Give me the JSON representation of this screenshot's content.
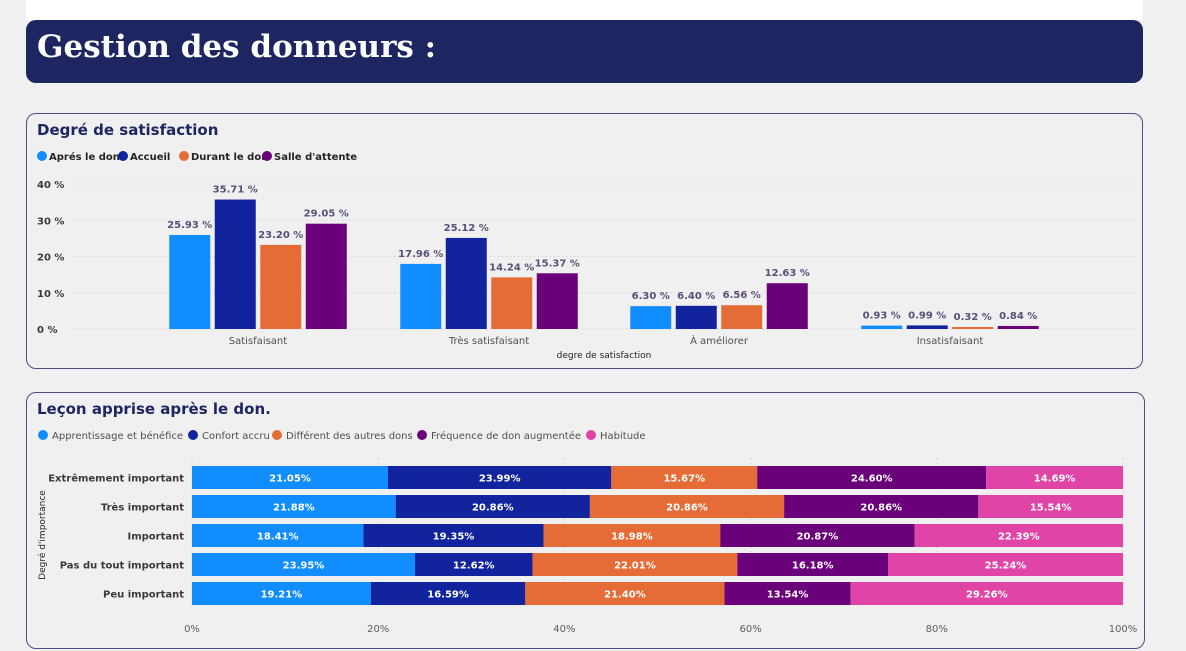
{
  "header": {
    "title": "Gestion des donneurs :"
  },
  "colors": {
    "apres": "#118dff",
    "accueil": "#12239e",
    "durant": "#e66c37",
    "salle": "#6b007b",
    "habitude": "#e044a7",
    "header_bg": "#1e2662",
    "title_text": "#1e2662"
  },
  "chart_data": [
    {
      "type": "bar",
      "title": "Degré de satisfaction",
      "xlabel": "degre de satisfaction",
      "ylabel": "",
      "ylim": [
        0,
        40
      ],
      "yticks": [
        "0 %",
        "10 %",
        "20 %",
        "30 %",
        "40 %"
      ],
      "grid": true,
      "legend_position": "top-left",
      "categories": [
        "Satisfaisant",
        "Très satisfaisant",
        "À améliorer",
        "Insatisfaisant"
      ],
      "series": [
        {
          "name": "Aprés le don",
          "color": "#118dff",
          "values": [
            25.93,
            17.96,
            6.3,
            0.93
          ],
          "labels": [
            "25.93 %",
            "17.96 %",
            "6.30 %",
            "0.93 %"
          ]
        },
        {
          "name": "Accueil",
          "color": "#12239e",
          "values": [
            35.71,
            25.12,
            6.4,
            0.99
          ],
          "labels": [
            "35.71 %",
            "25.12 %",
            "6.40 %",
            "0.99 %"
          ]
        },
        {
          "name": "Durant le don",
          "color": "#e66c37",
          "values": [
            23.2,
            14.24,
            6.56,
            0.32
          ],
          "labels": [
            "23.20 %",
            "14.24 %",
            "6.56 %",
            "0.32 %"
          ]
        },
        {
          "name": "Salle d'attente",
          "color": "#6b007b",
          "values": [
            29.05,
            15.37,
            12.63,
            0.84
          ],
          "labels": [
            "29.05 %",
            "15.37 %",
            "12.63 %",
            "0.84 %"
          ]
        }
      ]
    },
    {
      "type": "bar",
      "orientation": "horizontal",
      "stacked": "100%",
      "title": "Leçon apprise après le don.",
      "xlabel": "",
      "ylabel": "Degré d'importance",
      "xlim": [
        0,
        100
      ],
      "xticks": [
        "0%",
        "20%",
        "40%",
        "60%",
        "80%",
        "100%"
      ],
      "legend_position": "top-left",
      "categories": [
        "Extrêmement important",
        "Très important",
        "Important",
        "Pas du tout important",
        "Peu important"
      ],
      "series": [
        {
          "name": "Apprentissage et bénéfice",
          "color": "#118dff",
          "values": [
            21.05,
            21.88,
            18.41,
            23.95,
            19.21
          ],
          "labels": [
            "21.05%",
            "21.88%",
            "18.41%",
            "23.95%",
            "19.21%"
          ]
        },
        {
          "name": "Confort accru",
          "color": "#12239e",
          "values": [
            23.99,
            20.86,
            19.35,
            12.62,
            16.59
          ],
          "labels": [
            "23.99%",
            "20.86%",
            "19.35%",
            "12.62%",
            "16.59%"
          ]
        },
        {
          "name": "Différent des autres dons",
          "color": "#e66c37",
          "values": [
            15.67,
            20.86,
            18.98,
            22.01,
            21.4
          ],
          "labels": [
            "15.67%",
            "20.86%",
            "18.98%",
            "22.01%",
            "21.40%"
          ]
        },
        {
          "name": "Fréquence de don augmentée",
          "color": "#6b007b",
          "values": [
            24.6,
            20.86,
            20.87,
            16.18,
            13.54
          ],
          "labels": [
            "24.60%",
            "20.86%",
            "20.87%",
            "16.18%",
            "13.54%"
          ]
        },
        {
          "name": "Habitude",
          "color": "#e044a7",
          "values": [
            14.69,
            15.54,
            22.39,
            25.24,
            29.26
          ],
          "labels": [
            "14.69%",
            "15.54%",
            "22.39%",
            "25.24%",
            "29.26%"
          ]
        }
      ]
    }
  ]
}
